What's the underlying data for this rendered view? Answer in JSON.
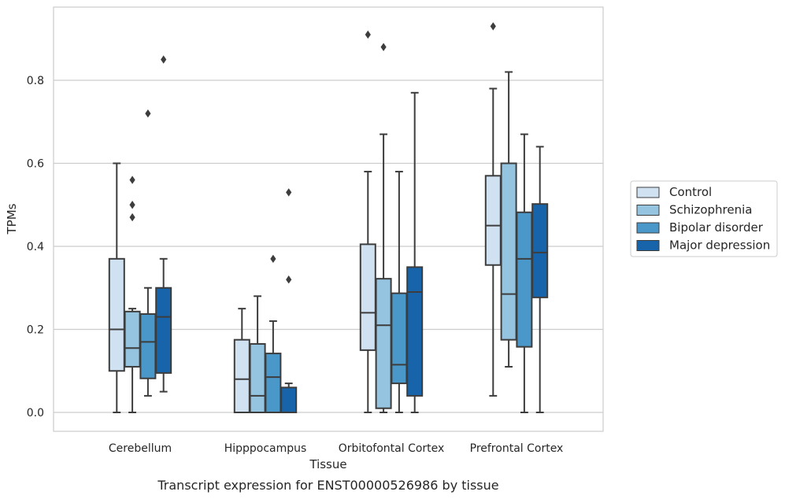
{
  "chart_data": {
    "type": "boxplot",
    "title": "",
    "caption": "Transcript expression for ENST00000526986 by tissue",
    "xlabel": "Tissue",
    "ylabel": "TPMs",
    "ylim": [
      -0.045,
      0.97
    ],
    "yticks": [
      0.0,
      0.2,
      0.4,
      0.6,
      0.8
    ],
    "ytick_labels": [
      "0.0",
      "0.2",
      "0.4",
      "0.6",
      "0.8"
    ],
    "grid": "horizontal",
    "legend_position": "right",
    "categories": [
      "Cerebellum",
      "Hipppocampus",
      "Orbitofontal Cortex",
      "Prefrontal Cortex"
    ],
    "series": [
      {
        "name": "Control",
        "color": "#d0e1f2",
        "boxes": [
          {
            "whisker_low": 0.0,
            "q1": 0.1,
            "median": 0.2,
            "q3": 0.37,
            "whisker_high": 0.6,
            "outliers": []
          },
          {
            "whisker_low": 0.0,
            "q1": 0.0,
            "median": 0.08,
            "q3": 0.175,
            "whisker_high": 0.25,
            "outliers": []
          },
          {
            "whisker_low": 0.0,
            "q1": 0.15,
            "median": 0.24,
            "q3": 0.405,
            "whisker_high": 0.58,
            "outliers": [
              0.91
            ]
          },
          {
            "whisker_low": 0.04,
            "q1": 0.355,
            "median": 0.45,
            "q3": 0.57,
            "whisker_high": 0.78,
            "outliers": [
              0.93
            ]
          }
        ]
      },
      {
        "name": "Schizophrenia",
        "color": "#94c4df",
        "boxes": [
          {
            "whisker_low": 0.0,
            "q1": 0.11,
            "median": 0.155,
            "q3": 0.243,
            "whisker_high": 0.25,
            "outliers": [
              0.47,
              0.5,
              0.56
            ]
          },
          {
            "whisker_low": 0.0,
            "q1": 0.0,
            "median": 0.04,
            "q3": 0.165,
            "whisker_high": 0.28,
            "outliers": []
          },
          {
            "whisker_low": 0.0,
            "q1": 0.01,
            "median": 0.21,
            "q3": 0.322,
            "whisker_high": 0.67,
            "outliers": [
              0.88
            ]
          },
          {
            "whisker_low": 0.11,
            "q1": 0.175,
            "median": 0.285,
            "q3": 0.6,
            "whisker_high": 0.82,
            "outliers": []
          }
        ]
      },
      {
        "name": "Bipolar disorder",
        "color": "#4a98c9",
        "boxes": [
          {
            "whisker_low": 0.04,
            "q1": 0.082,
            "median": 0.17,
            "q3": 0.237,
            "whisker_high": 0.3,
            "outliers": [
              0.72
            ]
          },
          {
            "whisker_low": 0.0,
            "q1": 0.0,
            "median": 0.085,
            "q3": 0.142,
            "whisker_high": 0.22,
            "outliers": [
              0.37
            ]
          },
          {
            "whisker_low": 0.0,
            "q1": 0.07,
            "median": 0.115,
            "q3": 0.287,
            "whisker_high": 0.58,
            "outliers": []
          },
          {
            "whisker_low": 0.0,
            "q1": 0.158,
            "median": 0.37,
            "q3": 0.482,
            "whisker_high": 0.67,
            "outliers": []
          }
        ]
      },
      {
        "name": "Major depression",
        "color": "#1764ab",
        "boxes": [
          {
            "whisker_low": 0.05,
            "q1": 0.095,
            "median": 0.23,
            "q3": 0.3,
            "whisker_high": 0.37,
            "outliers": [
              0.85
            ]
          },
          {
            "whisker_low": 0.0,
            "q1": 0.0,
            "median": 0.0,
            "q3": 0.06,
            "whisker_high": 0.07,
            "outliers": [
              0.32,
              0.53
            ]
          },
          {
            "whisker_low": 0.0,
            "q1": 0.04,
            "median": 0.29,
            "q3": 0.35,
            "whisker_high": 0.77,
            "outliers": []
          },
          {
            "whisker_low": 0.0,
            "q1": 0.277,
            "median": 0.385,
            "q3": 0.502,
            "whisker_high": 0.64,
            "outliers": []
          }
        ]
      }
    ]
  }
}
